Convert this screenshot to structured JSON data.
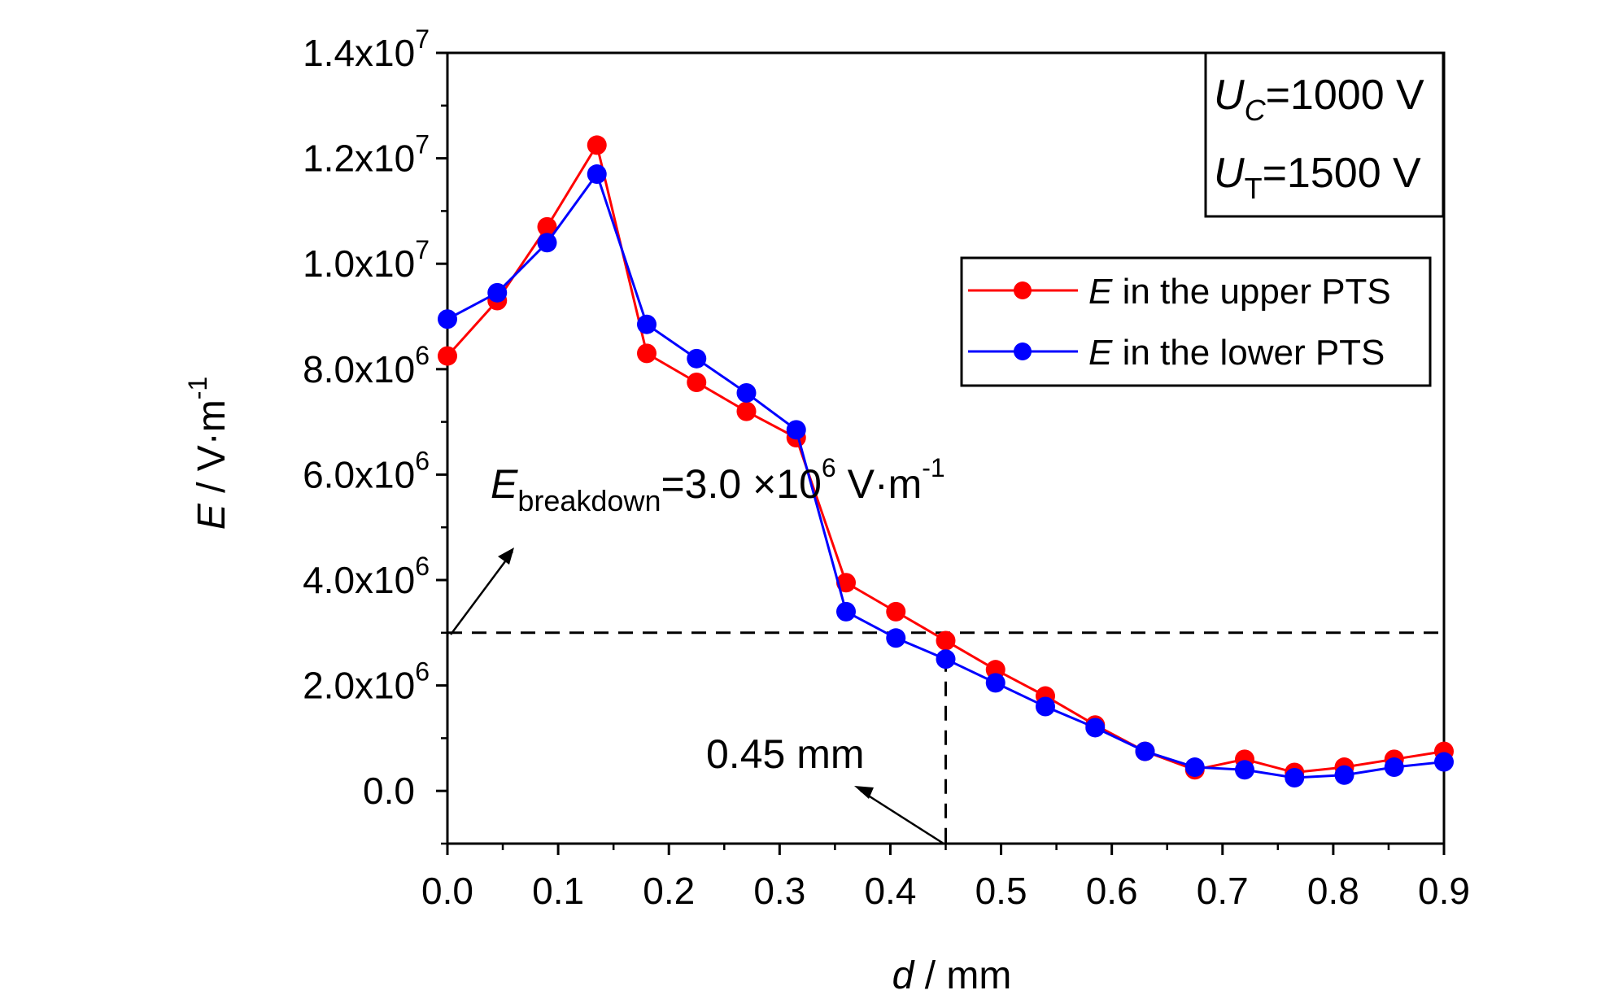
{
  "chart_data": {
    "type": "line",
    "xlabel_italic": "d",
    "xlabel_rest": " / mm",
    "ylabel_italic": "E",
    "ylabel_rest": " / V·m",
    "ylabel_sup": "-1",
    "xlim": [
      0,
      0.9
    ],
    "ylim": [
      -1000000,
      14000000
    ],
    "x_ticks": [
      0.0,
      0.1,
      0.2,
      0.3,
      0.4,
      0.5,
      0.6,
      0.7,
      0.8,
      0.9
    ],
    "x_tick_labels": [
      "0.0",
      "0.1",
      "0.2",
      "0.3",
      "0.4",
      "0.5",
      "0.6",
      "0.7",
      "0.8",
      "0.9"
    ],
    "y_ticks": [
      {
        "value": 0,
        "mantissa": "0.0",
        "exponent": ""
      },
      {
        "value": 2000000,
        "mantissa": "2.0x10",
        "exponent": "6"
      },
      {
        "value": 4000000,
        "mantissa": "4.0x10",
        "exponent": "6"
      },
      {
        "value": 6000000,
        "mantissa": "6.0x10",
        "exponent": "6"
      },
      {
        "value": 8000000,
        "mantissa": "8.0x10",
        "exponent": "6"
      },
      {
        "value": 10000000,
        "mantissa": "1.0x10",
        "exponent": "7"
      },
      {
        "value": 12000000,
        "mantissa": "1.2x10",
        "exponent": "7"
      },
      {
        "value": 14000000,
        "mantissa": "1.4x10",
        "exponent": "7"
      }
    ],
    "grid": false,
    "legend_position": "upper-right",
    "x": [
      0.0,
      0.045,
      0.09,
      0.135,
      0.18,
      0.225,
      0.27,
      0.315,
      0.36,
      0.405,
      0.45,
      0.495,
      0.54,
      0.585,
      0.63,
      0.675,
      0.72,
      0.765,
      0.81,
      0.855,
      0.9
    ],
    "series": [
      {
        "name_italic": "E",
        "name_rest": " in the upper PTS",
        "color": "#ff0000",
        "values": [
          8250000,
          9300000,
          10700000,
          12250000,
          8300000,
          7750000,
          7200000,
          6700000,
          3950000,
          3400000,
          2850000,
          2300000,
          1800000,
          1250000,
          750000,
          400000,
          600000,
          350000,
          450000,
          600000,
          750000
        ]
      },
      {
        "name_italic": "E",
        "name_rest": " in the lower PTS",
        "color": "#0000ff",
        "values": [
          8950000,
          9450000,
          10400000,
          11700000,
          8850000,
          8200000,
          7550000,
          6850000,
          3400000,
          2900000,
          2500000,
          2050000,
          1600000,
          1200000,
          750000,
          450000,
          400000,
          250000,
          300000,
          450000,
          550000
        ]
      }
    ],
    "conditions": [
      {
        "italic": "U",
        "sub": "C",
        "rest": "=1000 V"
      },
      {
        "italic": "U",
        "sub": "T",
        "rest": "=1500 V"
      }
    ],
    "threshold": {
      "y": 3000000,
      "x": 0.45,
      "label_italic": "E",
      "label_sub": "breakdown",
      "label_rest": "=3.0 ×10",
      "label_sup": "6",
      "label_unit": " V·m",
      "label_unit_sup": "-1",
      "x_label": "0.45 mm"
    }
  }
}
